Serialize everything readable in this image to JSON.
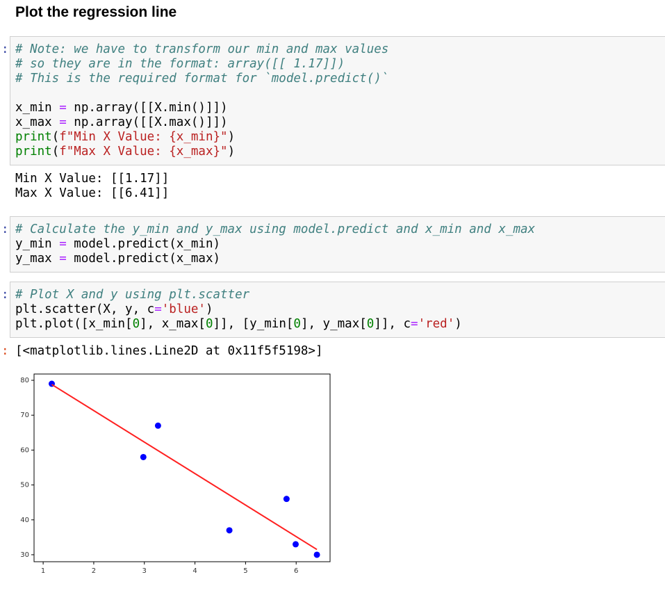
{
  "heading": "Plot the regression line",
  "cells": [
    {
      "prompt": ":",
      "code": [
        [
          "# Note: we have to transform our min and max values",
          "# so they are in the format: array([[ 1.17]])",
          "# This is the required format for `model.predict()`"
        ],
        [
          "x_min = np.array([[X.min()]])",
          "x_max = np.array([[X.max()]])",
          "print(f\"Min X Value: {x_min}\")",
          "print(f\"Max X Value: {x_max}\")"
        ]
      ],
      "output": {
        "lines": [
          "Min X Value: [[1.17]]",
          "Max X Value: [[6.41]]"
        ]
      }
    },
    {
      "prompt": ":",
      "code": [
        [
          "# Calculate the y_min and y_max using model.predict and x_min and x_max",
          "y_min = model.predict(x_min)",
          "y_max = model.predict(x_max)"
        ]
      ]
    },
    {
      "prompt": ":",
      "code": [
        [
          "# Plot X and y using plt.scatter",
          "plt.scatter(X, y, c='blue')",
          "plt.plot([x_min[0], x_max[0]], [y_min[0], y_max[0]], c='red')"
        ]
      ],
      "output": {
        "prompt": ":",
        "lines": [
          "[<matplotlib.lines.Line2D at 0x11f5f5198>]"
        ]
      }
    }
  ],
  "chart_data": {
    "type": "scatter",
    "series": [
      {
        "type": "scatter",
        "color": "#0000ff",
        "x": [
          1.17,
          2.98,
          3.27,
          4.68,
          5.81,
          5.99,
          6.41
        ],
        "values": [
          79,
          58,
          67,
          37,
          46,
          33,
          30
        ]
      },
      {
        "type": "line",
        "color": "#ff2020",
        "x": [
          1.17,
          6.41
        ],
        "values": [
          78.8,
          31.5
        ]
      }
    ],
    "xlim": [
      0.82,
      6.67
    ],
    "ylim": [
      28,
      81.8
    ],
    "xticks": [
      1,
      2,
      3,
      4,
      5,
      6
    ],
    "yticks": [
      30,
      40,
      50,
      60,
      70,
      80
    ]
  }
}
